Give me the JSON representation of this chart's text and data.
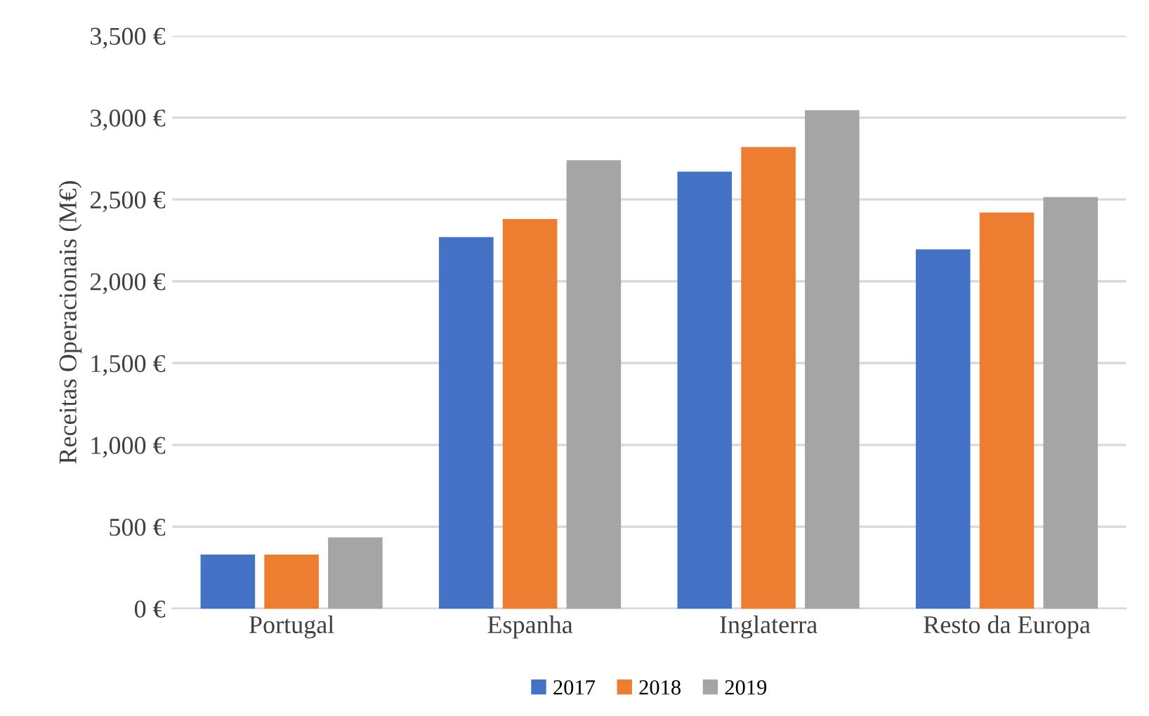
{
  "chart_data": {
    "type": "bar",
    "ylabel": "Receitas Operacionais (M€)",
    "categories": [
      "Portugal",
      "Espanha",
      "Inglaterra",
      "Resto da Europa"
    ],
    "series": [
      {
        "name": "2017",
        "color": "#4472c4",
        "values": [
          330,
          2270,
          2670,
          2195
        ]
      },
      {
        "name": "2018",
        "color": "#ed7d31",
        "values": [
          330,
          2380,
          2820,
          2420
        ]
      },
      {
        "name": "2019",
        "color": "#a5a5a5",
        "values": [
          435,
          2740,
          3045,
          2515
        ]
      }
    ],
    "ylim": [
      0,
      3500
    ],
    "yticks": [
      {
        "value": 0,
        "label": "0 €"
      },
      {
        "value": 500,
        "label": "500 €"
      },
      {
        "value": 1000,
        "label": "1,000 €"
      },
      {
        "value": 1500,
        "label": "1,500 €"
      },
      {
        "value": 2000,
        "label": "2,000 €"
      },
      {
        "value": 2500,
        "label": "2,500 €"
      },
      {
        "value": 3000,
        "label": "3,000 €"
      },
      {
        "value": 3500,
        "label": "3,500 €"
      }
    ],
    "grid": "y",
    "legend": "bottom"
  }
}
